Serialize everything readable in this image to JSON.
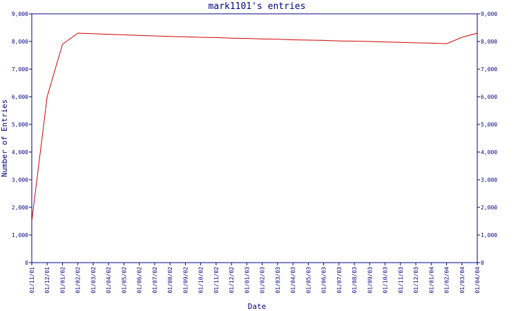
{
  "chart_data": {
    "type": "line",
    "title": "mark1101's entries",
    "xlabel": "Date",
    "ylabel": "Number of Entries",
    "ylim": [
      0,
      9000
    ],
    "yticks": [
      0,
      1000,
      2000,
      3000,
      4000,
      5000,
      6000,
      7000,
      8000,
      9000
    ],
    "ytick_labels": [
      "0",
      "1,000",
      "2,000",
      "3,000",
      "4,000",
      "5,000",
      "6,000",
      "7,000",
      "8,000",
      "9,000"
    ],
    "categories": [
      "01/11/01",
      "01/12/01",
      "01/01/02",
      "01/02/02",
      "01/03/02",
      "01/04/02",
      "01/05/02",
      "01/06/02",
      "01/07/02",
      "01/08/02",
      "01/09/02",
      "01/10/02",
      "01/11/02",
      "01/12/02",
      "01/01/03",
      "01/02/03",
      "01/03/03",
      "01/04/03",
      "01/05/03",
      "01/06/03",
      "01/07/03",
      "01/08/03",
      "01/09/03",
      "01/10/03",
      "01/11/03",
      "01/12/03",
      "01/01/04",
      "01/02/04",
      "01/03/04",
      "01/04/04"
    ],
    "grid": false,
    "series": [
      {
        "points": [
          {
            "x": "01/11/01",
            "y": 1500
          },
          {
            "x": "01/12/01",
            "y": 6000
          },
          {
            "x": "01/01/02",
            "y": 7900
          },
          {
            "x": "01/02/02",
            "y": 8300
          },
          {
            "x": "01/03/02",
            "y": 8280
          },
          {
            "x": "01/04/02",
            "y": 8260
          },
          {
            "x": "01/05/02",
            "y": 8240
          },
          {
            "x": "01/06/02",
            "y": 8220
          },
          {
            "x": "01/07/02",
            "y": 8200
          },
          {
            "x": "01/08/02",
            "y": 8180
          },
          {
            "x": "01/09/02",
            "y": 8170
          },
          {
            "x": "01/10/02",
            "y": 8150
          },
          {
            "x": "01/11/02",
            "y": 8140
          },
          {
            "x": "01/12/02",
            "y": 8120
          },
          {
            "x": "01/01/03",
            "y": 8110
          },
          {
            "x": "01/02/03",
            "y": 8090
          },
          {
            "x": "01/03/03",
            "y": 8080
          },
          {
            "x": "01/04/03",
            "y": 8060
          },
          {
            "x": "01/05/03",
            "y": 8050
          },
          {
            "x": "01/06/03",
            "y": 8040
          },
          {
            "x": "01/07/03",
            "y": 8020
          },
          {
            "x": "01/08/03",
            "y": 8010
          },
          {
            "x": "01/09/03",
            "y": 8000
          },
          {
            "x": "01/10/03",
            "y": 7980
          },
          {
            "x": "01/11/03",
            "y": 7970
          },
          {
            "x": "01/12/03",
            "y": 7950
          },
          {
            "x": "01/01/04",
            "y": 7940
          },
          {
            "x": "01/02/04",
            "y": 7920
          },
          {
            "x": "01/03/04",
            "y": 8150
          },
          {
            "x": "01/04/04",
            "y": 8300
          }
        ]
      }
    ],
    "colors": {
      "line": "#cc0000",
      "axis": "#000080",
      "text": "#000080",
      "background": "#ffffff"
    }
  }
}
